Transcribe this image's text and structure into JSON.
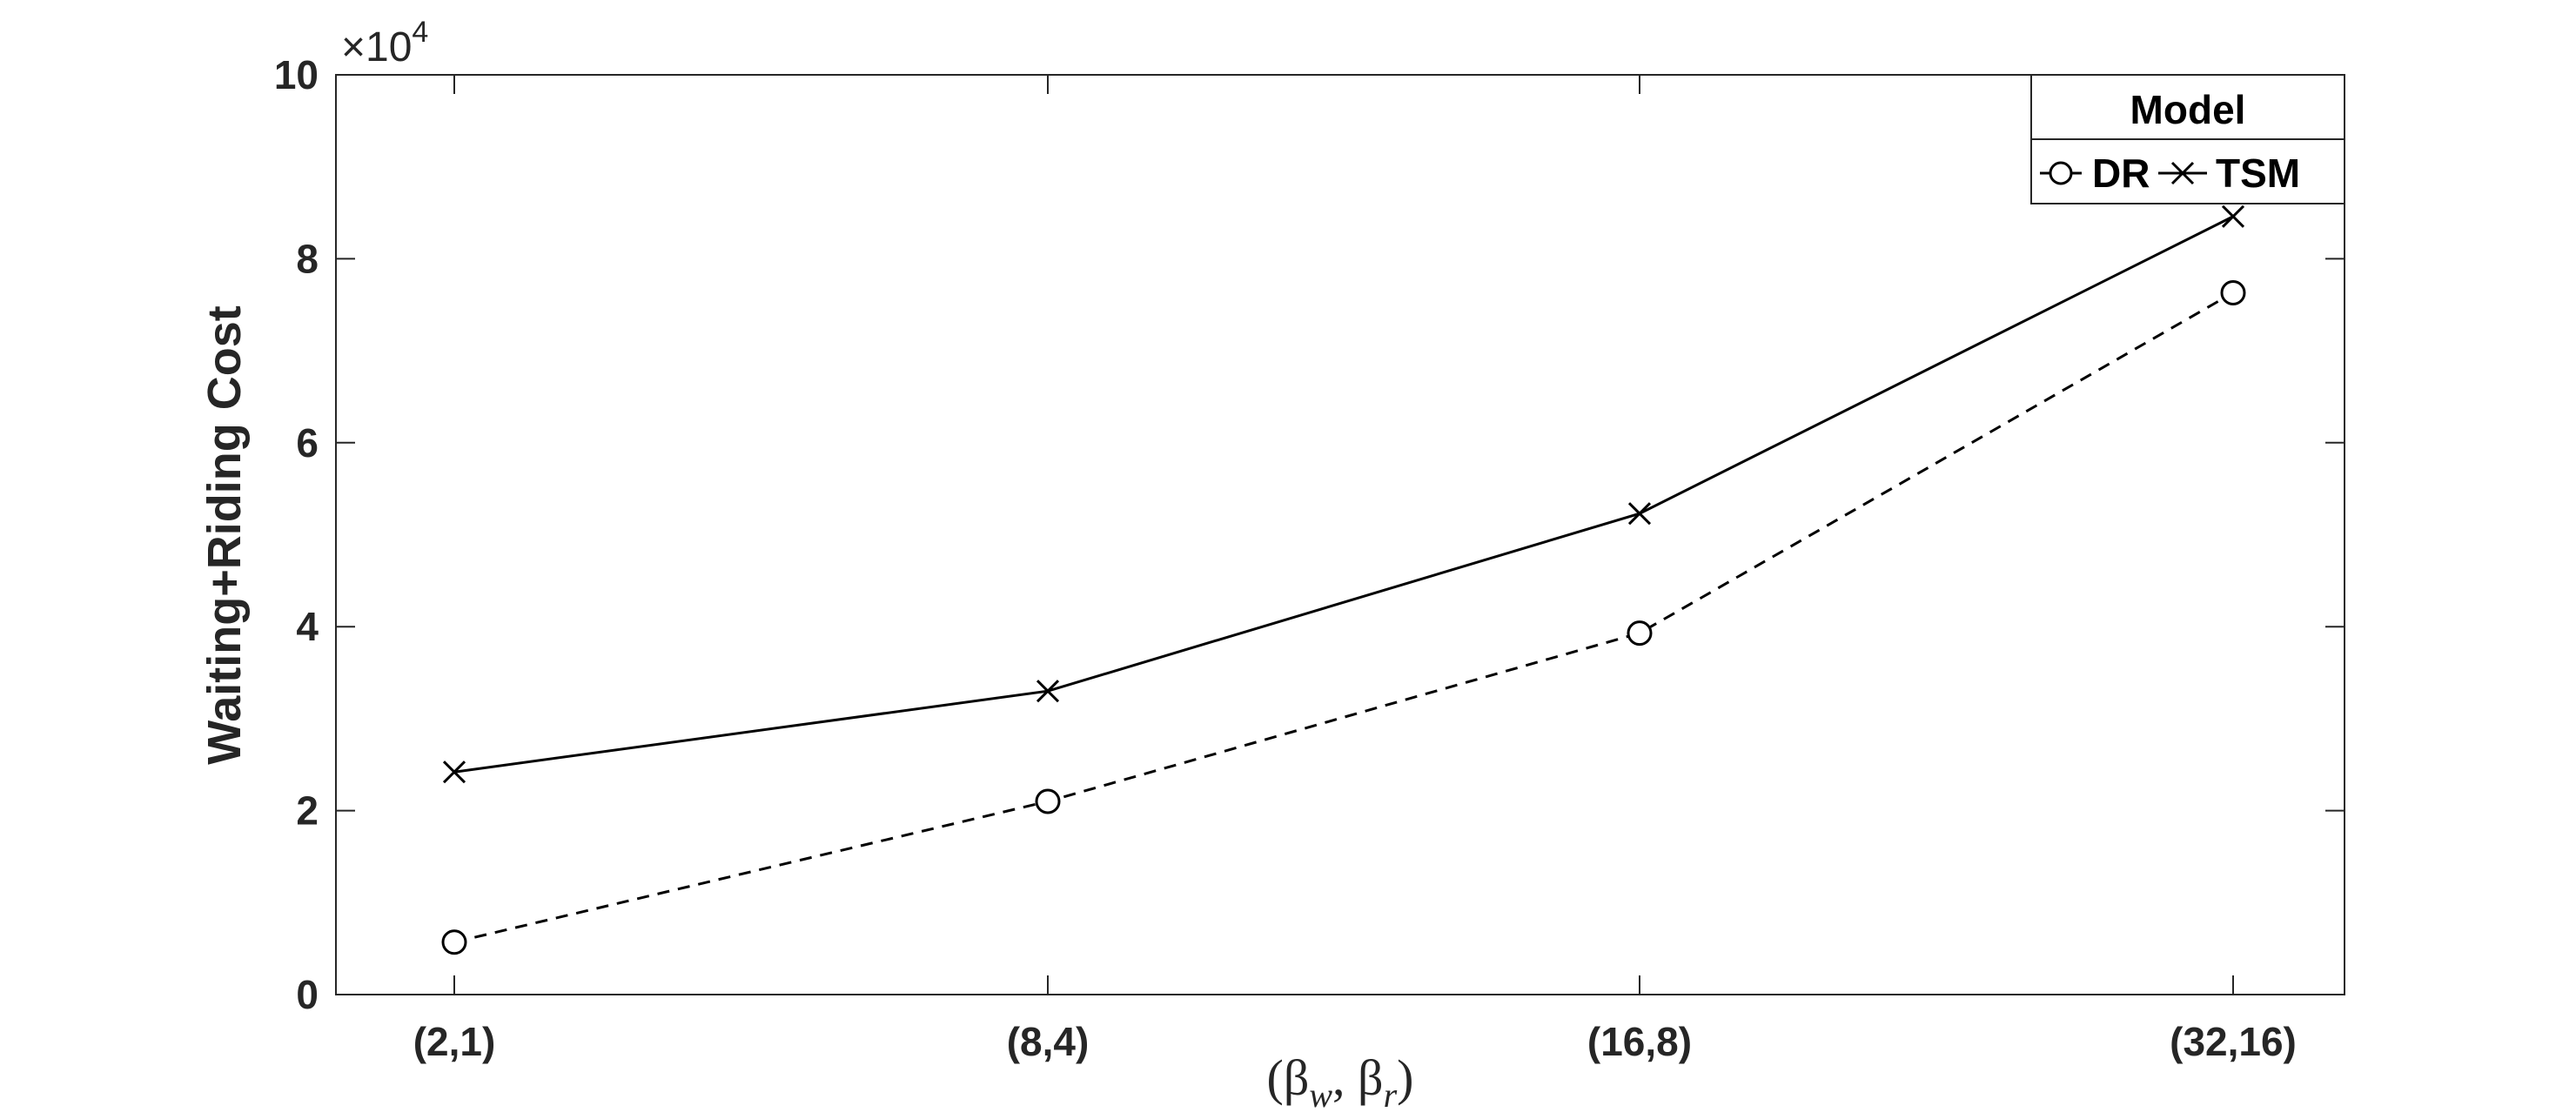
{
  "chart_data": {
    "type": "line",
    "categories": [
      "(2,1)",
      "(8,4)",
      "(16,8)",
      "(32,16)"
    ],
    "series": [
      {
        "name": "DR",
        "values": [
          5700,
          21000,
          39300,
          76300
        ],
        "marker": "circle",
        "line_style": "dashed",
        "color": "#000000"
      },
      {
        "name": "TSM",
        "values": [
          24200,
          33000,
          52300,
          84600
        ],
        "marker": "x",
        "line_style": "solid",
        "color": "#000000"
      }
    ],
    "xlabel": "(βw, βr)",
    "ylabel": "Waiting+Riding Cost",
    "ylim": [
      0,
      100000
    ],
    "yticks": [
      0,
      2,
      4,
      6,
      8,
      10
    ],
    "y_exponent": "×10^4",
    "legend": {
      "title": "Model",
      "position": "top-right"
    },
    "grid": false
  }
}
